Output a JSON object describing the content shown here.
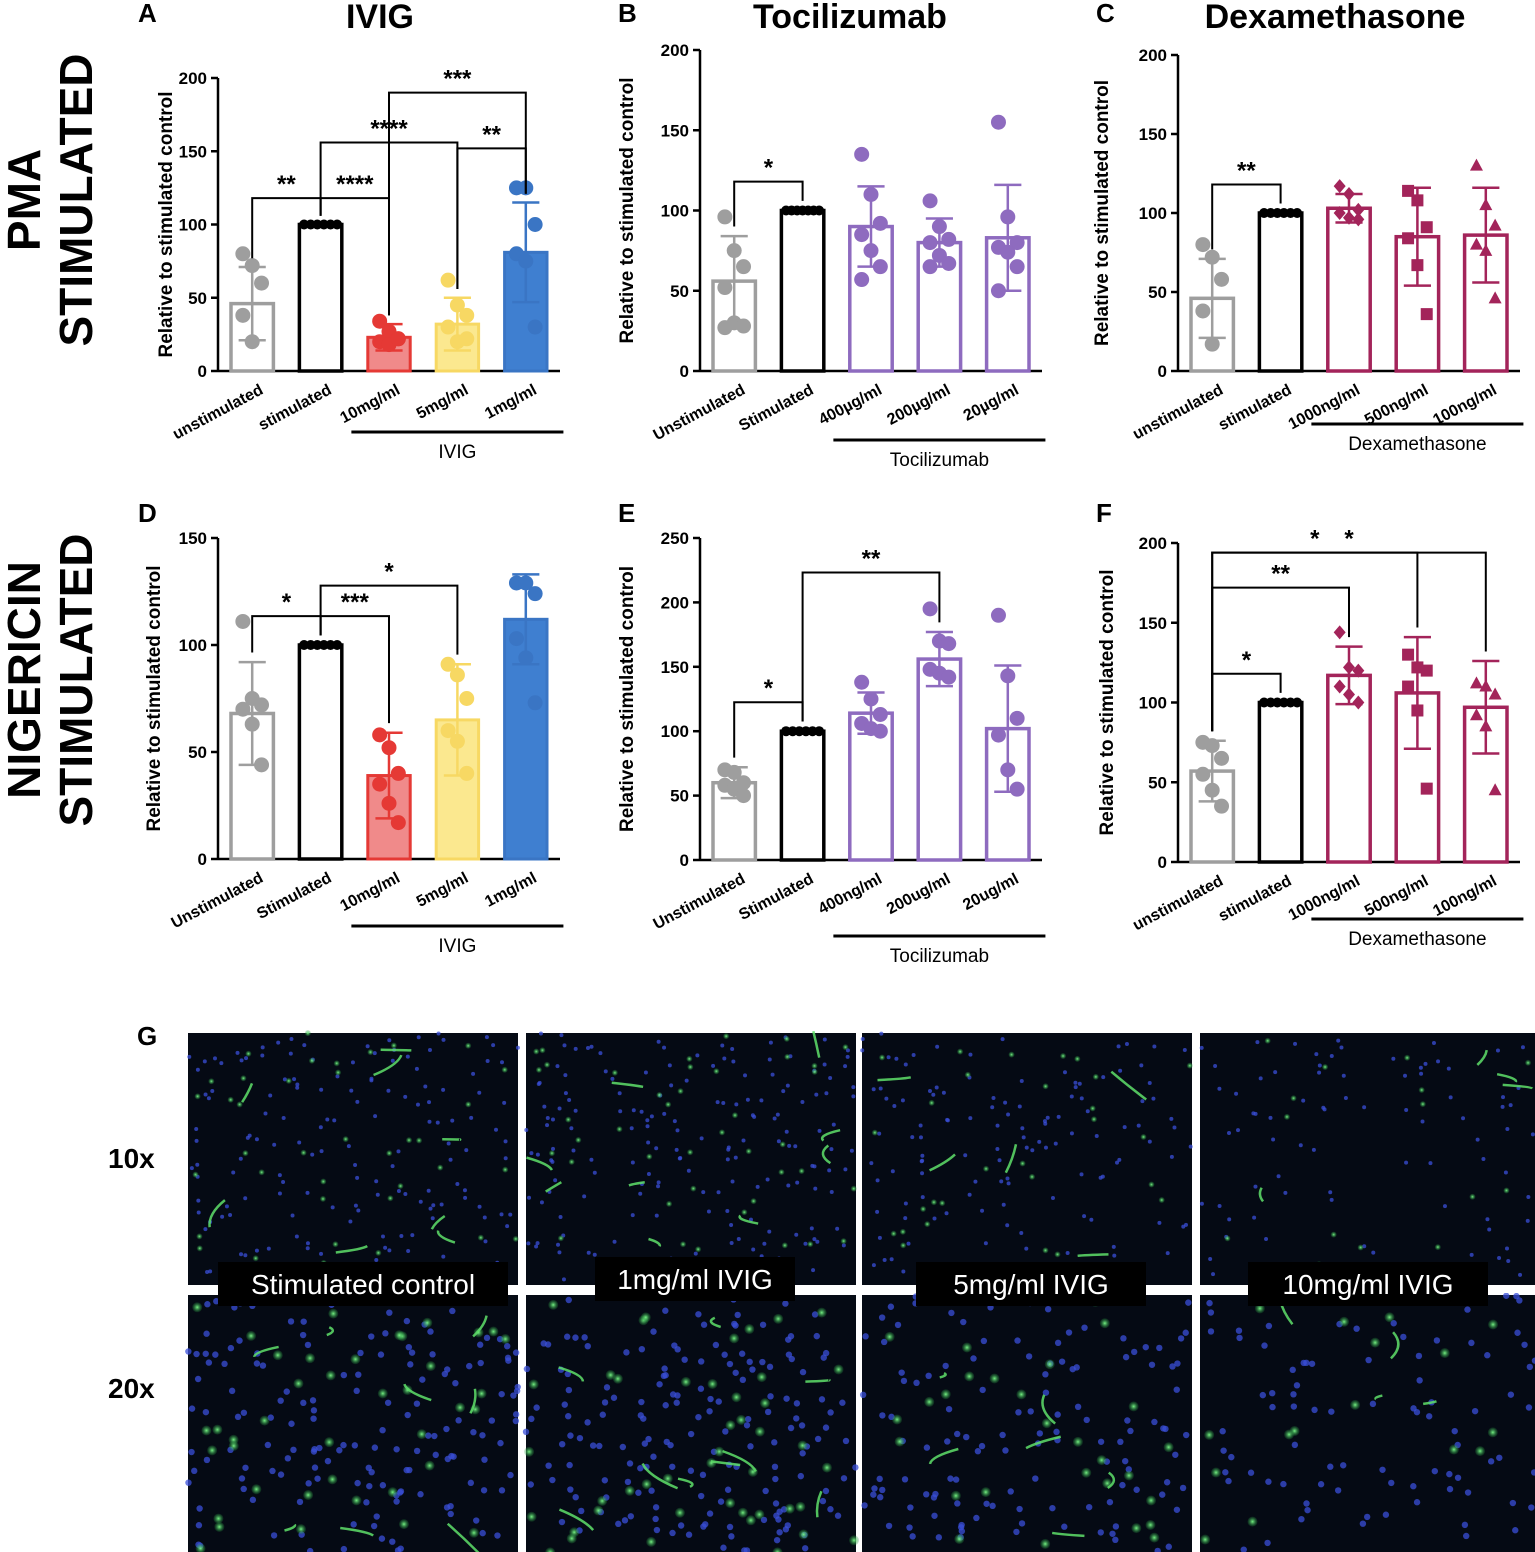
{
  "row_labels": {
    "pma": [
      "PMA",
      "STIMULATED"
    ],
    "nigericin": [
      "NIGERICIN",
      "STIMULATED"
    ]
  },
  "microscopy": {
    "panel_letter": "G",
    "magnifications": [
      "10x",
      "20x"
    ],
    "labels": [
      "Stimulated control",
      "1mg/ml IVIG",
      "5mg/ml IVIG",
      "10mg/ml IVIG"
    ]
  },
  "chart_data": [
    {
      "panel": "A",
      "type": "bar",
      "title": "IVIG",
      "ylabel": "Relative to stimulated control",
      "ylim": [
        0,
        200
      ],
      "yticks": [
        0,
        50,
        100,
        150,
        200
      ],
      "categories": [
        "unstimulated",
        "stimulated",
        "10mg/ml",
        "5mg/ml",
        "1mg/ml"
      ],
      "values": [
        46,
        100,
        23,
        32,
        81
      ],
      "sd": [
        25,
        0,
        9,
        18,
        34
      ],
      "points": [
        [
          80,
          72,
          60,
          38,
          20
        ],
        [
          100,
          100,
          100,
          100,
          100,
          100
        ],
        [
          34,
          27,
          22,
          20,
          18,
          22
        ],
        [
          62,
          45,
          38,
          30,
          20,
          22
        ],
        [
          125,
          125,
          100,
          80,
          75,
          30
        ]
      ],
      "bar_style": [
        "outline",
        "outline",
        "filled",
        "filled",
        "filled"
      ],
      "colors": [
        "#9e9e9e",
        "#000000",
        "#e53935",
        "#f7d863",
        "#3a75c4"
      ],
      "fills": [
        "none",
        "none",
        "#f08a8a",
        "#fbe88f",
        "#3f7fd0"
      ],
      "marker": "circle",
      "group_label": "IVIG",
      "group_span": [
        2,
        4
      ],
      "significance": [
        {
          "from": 0,
          "to": 1,
          "label": "**",
          "level": 0
        },
        {
          "from": 1,
          "to": 2,
          "label": "****",
          "level": 0
        },
        {
          "from": 3,
          "to": 4,
          "label": "**",
          "level": 1
        },
        {
          "from": 1,
          "to": 3,
          "label": "****",
          "level": 2
        },
        {
          "from": 2,
          "to": 4,
          "label": "***",
          "level": 3
        }
      ]
    },
    {
      "panel": "B",
      "type": "bar",
      "title": "Tocilizumab",
      "ylabel": "Relative to stimulated control",
      "ylim": [
        0,
        200
      ],
      "yticks": [
        0,
        50,
        100,
        150,
        200
      ],
      "categories": [
        "Unstimulated",
        "Stimulated",
        "400µg/ml",
        "200µg/ml",
        "20µg/ml"
      ],
      "values": [
        56,
        100,
        90,
        80,
        83
      ],
      "sd": [
        28,
        0,
        25,
        15,
        33
      ],
      "points": [
        [
          96,
          75,
          65,
          52,
          30,
          28,
          27
        ],
        [
          100,
          100,
          100,
          100,
          100,
          100,
          100
        ],
        [
          135,
          110,
          92,
          85,
          75,
          65,
          57
        ],
        [
          106,
          90,
          82,
          80,
          72,
          67,
          65
        ],
        [
          155,
          96,
          80,
          77,
          74,
          65,
          50
        ]
      ],
      "bar_style": [
        "outline",
        "outline",
        "outline",
        "outline",
        "outline"
      ],
      "colors": [
        "#9e9e9e",
        "#000000",
        "#8e6bbf",
        "#8e6bbf",
        "#8e6bbf"
      ],
      "fills": [
        "none",
        "none",
        "none",
        "none",
        "none"
      ],
      "marker": "circle",
      "group_label": "Tocilizumab",
      "group_span": [
        2,
        4
      ],
      "significance": [
        {
          "from": 0,
          "to": 1,
          "label": "*",
          "level": 0
        }
      ]
    },
    {
      "panel": "C",
      "type": "bar",
      "title": "Dexamethasone",
      "ylabel": "Relative to stimulated control",
      "ylim": [
        0,
        200
      ],
      "yticks": [
        0,
        50,
        100,
        150,
        200
      ],
      "categories": [
        "unstimulated",
        "stimulated",
        "1000ng/ml",
        "500ng/ml",
        "100ng/ml"
      ],
      "values": [
        46,
        100,
        103,
        85,
        86
      ],
      "sd": [
        25,
        0,
        9,
        31,
        30
      ],
      "points": [
        [
          80,
          72,
          58,
          38,
          17
        ],
        [
          100,
          100,
          100,
          100,
          100,
          100
        ],
        [
          117,
          112,
          102,
          100,
          97,
          96
        ],
        [
          114,
          108,
          91,
          84,
          67,
          36
        ],
        [
          130,
          105,
          92,
          80,
          76,
          46
        ]
      ],
      "bar_style": [
        "outline",
        "outline",
        "outline",
        "outline",
        "outline"
      ],
      "colors": [
        "#9e9e9e",
        "#000000",
        "#a3245a",
        "#a3245a",
        "#a3245a"
      ],
      "fills": [
        "none",
        "none",
        "none",
        "none",
        "none"
      ],
      "markers": [
        "circle",
        "circle",
        "diamond",
        "square",
        "triangle"
      ],
      "group_label": "Dexamethasone",
      "group_span": [
        2,
        4
      ],
      "significance": [
        {
          "from": 0,
          "to": 1,
          "label": "**",
          "level": 0
        }
      ]
    },
    {
      "panel": "D",
      "type": "bar",
      "title": "",
      "ylabel": "Relative to stimulated control",
      "ylim": [
        0,
        150
      ],
      "yticks": [
        0,
        50,
        100,
        150
      ],
      "categories": [
        "Unstimulated",
        "Stimulated",
        "10mg/ml",
        "5mg/ml",
        "1mg/ml"
      ],
      "values": [
        68,
        100,
        39,
        65,
        112
      ],
      "sd": [
        24,
        0,
        20,
        26,
        21
      ],
      "points": [
        [
          111,
          75,
          72,
          70,
          63,
          44
        ],
        [
          100,
          100,
          100,
          100,
          100,
          100
        ],
        [
          58,
          52,
          40,
          35,
          26,
          17
        ],
        [
          91,
          86,
          75,
          60,
          55,
          40
        ],
        [
          129,
          129,
          124,
          103,
          94,
          73
        ]
      ],
      "bar_style": [
        "outline",
        "outline",
        "filled",
        "filled",
        "filled"
      ],
      "colors": [
        "#9e9e9e",
        "#000000",
        "#e53935",
        "#f7d863",
        "#3a75c4"
      ],
      "fills": [
        "none",
        "none",
        "#f08a8a",
        "#fbe88f",
        "#3f7fd0"
      ],
      "marker": "circle",
      "group_label": "IVIG",
      "group_span": [
        2,
        4
      ],
      "significance": [
        {
          "from": 0,
          "to": 1,
          "label": "*",
          "level": 0
        },
        {
          "from": 1,
          "to": 2,
          "label": "***",
          "level": 0
        },
        {
          "from": 1,
          "to": 3,
          "label": "*",
          "level": 1
        }
      ]
    },
    {
      "panel": "E",
      "type": "bar",
      "title": "",
      "ylabel": "Relative to stimulated control",
      "ylim": [
        0,
        250
      ],
      "yticks": [
        0,
        50,
        100,
        150,
        200,
        250
      ],
      "categories": [
        "Unstimulated",
        "Stimulated",
        "400ng/ml",
        "200ug/ml",
        "20ug/ml"
      ],
      "values": [
        60,
        100,
        114,
        156,
        102
      ],
      "sd": [
        12,
        0,
        16,
        21,
        49
      ],
      "points": [
        [
          70,
          68,
          60,
          58,
          55,
          50
        ],
        [
          100,
          100,
          100,
          100,
          100,
          100
        ],
        [
          138,
          125,
          113,
          106,
          102,
          100
        ],
        [
          195,
          170,
          168,
          148,
          145,
          142
        ],
        [
          190,
          143,
          110,
          97,
          70,
          55
        ]
      ],
      "bar_style": [
        "outline",
        "outline",
        "outline",
        "outline",
        "outline"
      ],
      "colors": [
        "#9e9e9e",
        "#000000",
        "#8e6bbf",
        "#8e6bbf",
        "#8e6bbf"
      ],
      "fills": [
        "none",
        "none",
        "none",
        "none",
        "none"
      ],
      "marker": "circle",
      "group_label": "Tocilizumab",
      "group_span": [
        2,
        4
      ],
      "significance": [
        {
          "from": 0,
          "to": 1,
          "label": "*",
          "level": 0
        },
        {
          "from": 1,
          "to": 3,
          "label": "**",
          "level": 1
        }
      ]
    },
    {
      "panel": "F",
      "type": "bar",
      "title": "",
      "ylabel": "Relative to stimulated control",
      "ylim": [
        0,
        200
      ],
      "yticks": [
        0,
        50,
        100,
        150,
        200
      ],
      "categories": [
        "unstimulated",
        "stimulated",
        "1000ng/ml",
        "500ng/ml",
        "100ng/ml"
      ],
      "values": [
        57,
        100,
        117,
        106,
        97
      ],
      "sd": [
        19,
        0,
        18,
        35,
        29
      ],
      "points": [
        [
          75,
          73,
          65,
          55,
          45,
          35
        ],
        [
          100,
          100,
          100,
          100,
          100,
          100
        ],
        [
          144,
          122,
          120,
          110,
          105,
          100
        ],
        [
          130,
          122,
          120,
          110,
          95,
          46
        ],
        [
          112,
          110,
          105,
          92,
          85,
          45
        ]
      ],
      "bar_style": [
        "outline",
        "outline",
        "outline",
        "outline",
        "outline"
      ],
      "colors": [
        "#9e9e9e",
        "#000000",
        "#a3245a",
        "#a3245a",
        "#a3245a"
      ],
      "fills": [
        "none",
        "none",
        "none",
        "none",
        "none"
      ],
      "markers": [
        "circle",
        "circle",
        "diamond",
        "square",
        "triangle"
      ],
      "group_label": "Dexamethasone",
      "group_span": [
        2,
        4
      ],
      "significance": [
        {
          "from": 0,
          "to": 1,
          "label": "*",
          "level": 0
        },
        {
          "from": 0,
          "to": 2,
          "label": "**",
          "level": 1
        },
        {
          "from": 0,
          "to": 3,
          "label": "*",
          "level": 2
        },
        {
          "from": 0,
          "to": 4,
          "label": "*",
          "level": 3
        }
      ]
    }
  ]
}
